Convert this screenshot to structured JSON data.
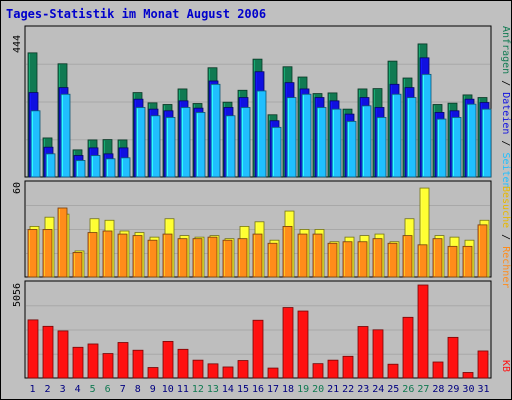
{
  "chart_data": [
    {
      "type": "bar",
      "title": "Tages-Statistik im Monat August 2006",
      "ymax_label": "444",
      "ylim": [
        0,
        444
      ],
      "categories": [
        "1",
        "2",
        "3",
        "4",
        "5",
        "6",
        "7",
        "8",
        "9",
        "10",
        "11",
        "12",
        "13",
        "14",
        "15",
        "16",
        "17",
        "18",
        "19",
        "20",
        "21",
        "22",
        "23",
        "24",
        "25",
        "26",
        "27",
        "28",
        "29",
        "30",
        "31"
      ],
      "weekend_days": [
        5,
        6,
        12,
        13,
        19,
        20,
        26,
        27
      ],
      "series": [
        {
          "name": "Anfragen",
          "color": "#117a52",
          "values": [
            375,
            118,
            342,
            82,
            112,
            113,
            112,
            255,
            224,
            219,
            266,
            222,
            330,
            226,
            262,
            356,
            188,
            333,
            302,
            252,
            254,
            205,
            266,
            267,
            350,
            299,
            402,
            219,
            223,
            248,
            240
          ]
        },
        {
          "name": "Dateien",
          "color": "#1010e0",
          "values": [
            255,
            90,
            270,
            65,
            88,
            70,
            88,
            235,
            205,
            200,
            230,
            208,
            290,
            210,
            240,
            318,
            170,
            285,
            266,
            240,
            230,
            190,
            240,
            210,
            280,
            270,
            360,
            195,
            200,
            235,
            225
          ]
        },
        {
          "name": "Seiten",
          "color": "#20bfff",
          "values": [
            200,
            70,
            250,
            50,
            65,
            55,
            58,
            210,
            185,
            180,
            210,
            195,
            280,
            185,
            210,
            260,
            150,
            240,
            250,
            210,
            205,
            168,
            215,
            180,
            250,
            240,
            310,
            175,
            180,
            220,
            205
          ]
        }
      ]
    },
    {
      "type": "bar",
      "ymax_label": "60",
      "ylim": [
        0,
        60
      ],
      "categories": [
        "1",
        "2",
        "3",
        "4",
        "5",
        "6",
        "7",
        "8",
        "9",
        "10",
        "11",
        "12",
        "13",
        "14",
        "15",
        "16",
        "17",
        "18",
        "19",
        "20",
        "21",
        "22",
        "23",
        "24",
        "25",
        "26",
        "27",
        "28",
        "29",
        "30",
        "31"
      ],
      "series": [
        {
          "name": "Besuche",
          "color": "#ffff33",
          "values": [
            33,
            39,
            41,
            17,
            38,
            37,
            30,
            29,
            26,
            38,
            27,
            26,
            27,
            25,
            33,
            36,
            24,
            43,
            31,
            31,
            23,
            26,
            27,
            28,
            23,
            38,
            58,
            27,
            26,
            24,
            37
          ]
        },
        {
          "name": "Rechner",
          "color": "#ff8c1a",
          "values": [
            31,
            31,
            45,
            16,
            29,
            30,
            28,
            27,
            24,
            28,
            25,
            25,
            26,
            24,
            25,
            28,
            22,
            33,
            28,
            28,
            22,
            23,
            23,
            25,
            22,
            27,
            21,
            25,
            20,
            20,
            34
          ]
        }
      ]
    },
    {
      "type": "bar",
      "ymax_label": "5056",
      "ylim": [
        0,
        5056
      ],
      "categories": [
        "1",
        "2",
        "3",
        "4",
        "5",
        "6",
        "7",
        "8",
        "9",
        "10",
        "11",
        "12",
        "13",
        "14",
        "15",
        "16",
        "17",
        "18",
        "19",
        "20",
        "21",
        "22",
        "23",
        "24",
        "25",
        "26",
        "27",
        "28",
        "29",
        "30",
        "31"
      ],
      "series": [
        {
          "name": "KB",
          "color": "#ff1010",
          "values": [
            3160,
            2810,
            2560,
            1670,
            1850,
            1330,
            1930,
            1510,
            570,
            1990,
            1560,
            970,
            770,
            600,
            950,
            3140,
            540,
            3830,
            3640,
            780,
            970,
            1180,
            2800,
            2620,
            750,
            3300,
            5056,
            870,
            2210,
            300,
            1470
          ]
        }
      ]
    }
  ],
  "axis_legend": {
    "top": [
      "Anfragen",
      "Dateien",
      "Seiten"
    ],
    "middle": [
      "Besuche",
      "Rechner"
    ],
    "bottom": [
      "KB"
    ],
    "separator": " / "
  },
  "colors": {
    "background": "#c0c0c0",
    "panel_fill": "#bebebe",
    "title": "#0000cc",
    "day_label": "#000080",
    "weekend_label": "#117a52"
  }
}
